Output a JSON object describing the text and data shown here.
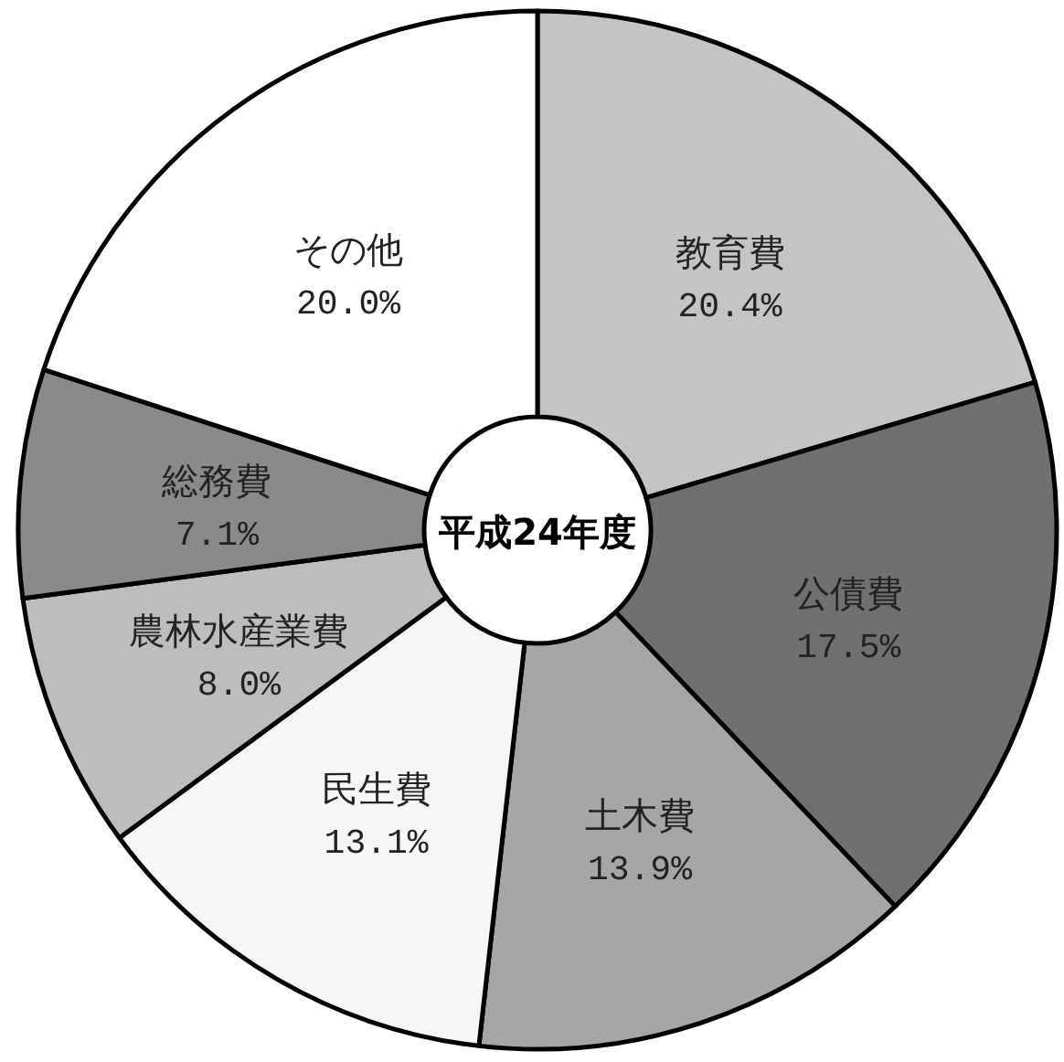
{
  "chart_data": {
    "type": "donut",
    "title": "平成24年度",
    "categories": [
      "教育費",
      "公債費",
      "土木費",
      "民生費",
      "農林水産業費",
      "総務費",
      "その他"
    ],
    "values": [
      20.4,
      17.5,
      13.9,
      13.1,
      8.0,
      7.1,
      20.0
    ],
    "value_labels": [
      "20.4%",
      "17.5%",
      "13.9%",
      "13.1%",
      "8.0%",
      "7.1%",
      "20.0%"
    ],
    "colors": [
      "#c4c4c4",
      "#707070",
      "#a6a6a6",
      "#f6f6f6",
      "#bdbdbd",
      "#8a8a8a",
      "#ffffff"
    ],
    "legend": false
  }
}
